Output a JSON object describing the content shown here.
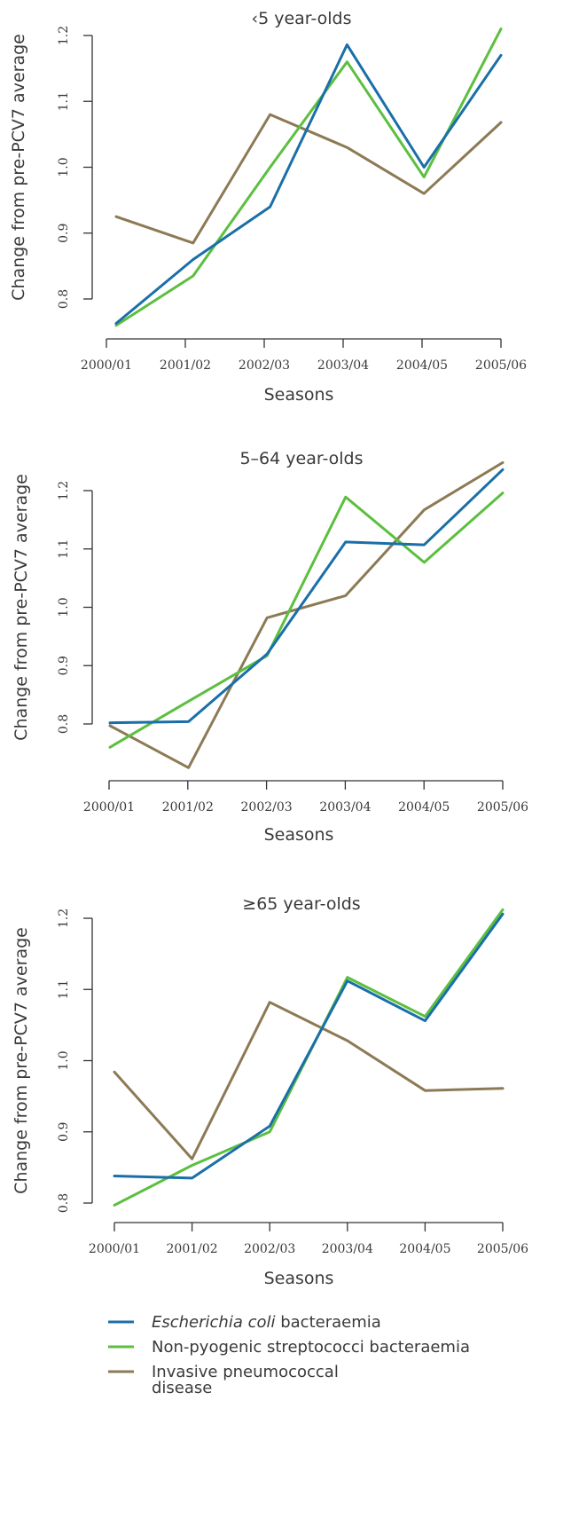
{
  "colors": {
    "e_coli": "#1a6fa8",
    "non_pyogenic": "#5cbf3f",
    "ipd": "#8c7a55",
    "axis": "#333333",
    "text": "#3a3a3a"
  },
  "legend": {
    "items": [
      {
        "italic": "Escherichia coli",
        "rest": " bacteraemia",
        "color": "#1a6fa8"
      },
      {
        "italic": "",
        "rest": "Non-pyogenic streptococci bacteraemia",
        "color": "#5cbf3f"
      },
      {
        "italic": "",
        "rest": "Invasive pneumococcal",
        "rest2": "disease",
        "color": "#8c7a55"
      }
    ]
  },
  "chart_data": [
    {
      "type": "line",
      "title": "‹5 year-olds",
      "xlabel": "Seasons",
      "ylabel": "Change from pre-PCV7 average",
      "categories": [
        "2000/01",
        "2001/02",
        "2002/03",
        "2003/04",
        "2004/05",
        "2005/06"
      ],
      "yticks": [
        "0.8",
        "0.9",
        "1.0",
        "1.1",
        "1.2"
      ],
      "ylim": [
        0.8,
        1.2
      ],
      "series": [
        {
          "name": "Escherichia coli bacteraemia",
          "color": "#1a6fa8",
          "values": [
            0.763,
            0.86,
            0.94,
            1.186,
            1.0,
            1.17
          ]
        },
        {
          "name": "Non-pyogenic streptococci bacteraemia",
          "color": "#5cbf3f",
          "values": [
            0.76,
            0.835,
            1.0,
            1.16,
            0.985,
            1.21
          ]
        },
        {
          "name": "Invasive pneumococcal disease",
          "color": "#8c7a55",
          "values": [
            0.925,
            0.885,
            1.08,
            1.03,
            0.96,
            1.068
          ]
        }
      ]
    },
    {
      "type": "line",
      "title": "5–64 year-olds",
      "xlabel": "Seasons",
      "ylabel": "Change from pre-PCV7 average",
      "categories": [
        "2000/01",
        "2001/02",
        "2002/03",
        "2003/04",
        "2004/05",
        "2005/06"
      ],
      "yticks": [
        "0.8",
        "0.9",
        "1.0",
        "1.1",
        "1.2"
      ],
      "ylim": [
        0.8,
        1.2
      ],
      "series": [
        {
          "name": "Escherichia coli bacteraemia",
          "color": "#1a6fa8",
          "values": [
            0.802,
            0.804,
            0.92,
            1.112,
            1.107,
            1.236
          ]
        },
        {
          "name": "Non-pyogenic streptococci bacteraemia",
          "color": "#5cbf3f",
          "values": [
            0.76,
            0.839,
            0.917,
            1.189,
            1.077,
            1.196
          ]
        },
        {
          "name": "Invasive pneumococcal disease",
          "color": "#8c7a55",
          "values": [
            0.797,
            0.725,
            0.982,
            1.02,
            1.167,
            1.248
          ]
        }
      ]
    },
    {
      "type": "line",
      "title": "≥65 year-olds",
      "xlabel": "Seasons",
      "ylabel": "Change from pre-PCV7 average",
      "categories": [
        "2000/01",
        "2001/02",
        "2002/03",
        "2003/04",
        "2004/05",
        "2005/06"
      ],
      "yticks": [
        "0.8",
        "0.9",
        "1.0",
        "1.1",
        "1.2"
      ],
      "ylim": [
        0.8,
        1.2
      ],
      "series": [
        {
          "name": "Escherichia coli bacteraemia",
          "color": "#1a6fa8",
          "values": [
            0.838,
            0.835,
            0.908,
            1.112,
            1.056,
            1.206
          ]
        },
        {
          "name": "Non-pyogenic streptococci bacteraemia",
          "color": "#5cbf3f",
          "values": [
            0.797,
            0.853,
            0.9,
            1.117,
            1.062,
            1.212
          ]
        },
        {
          "name": "Invasive pneumococcal disease",
          "color": "#8c7a55",
          "values": [
            0.984,
            0.862,
            1.082,
            1.028,
            0.958,
            0.961
          ]
        }
      ]
    }
  ]
}
